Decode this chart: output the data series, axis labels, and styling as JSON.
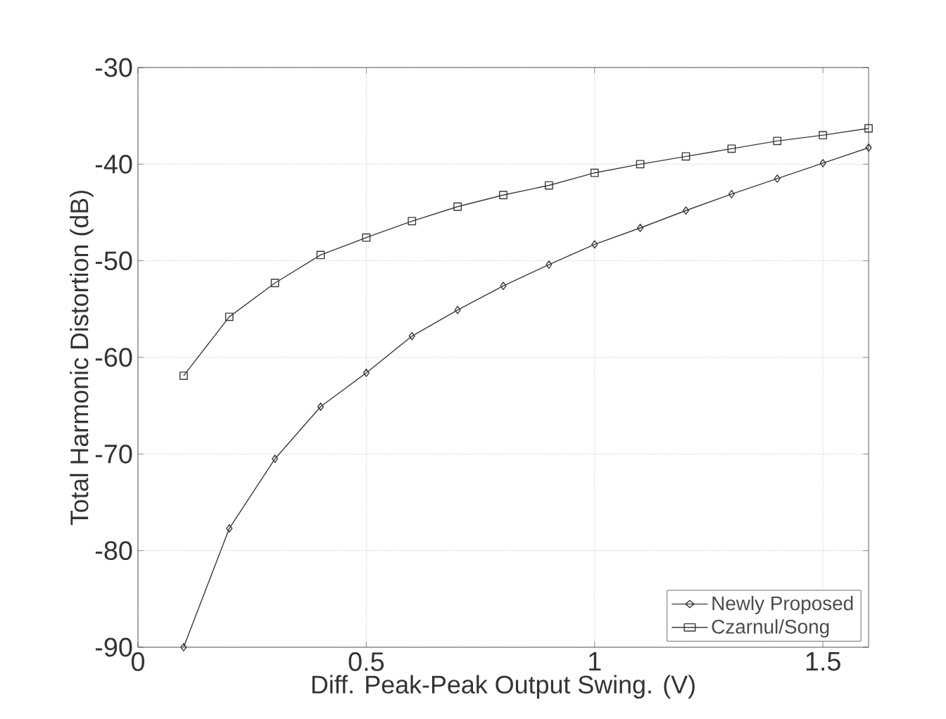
{
  "chart_data": {
    "type": "line",
    "xlabel": "Diff. Peak-Peak Output Swing. (V)",
    "ylabel": "Total Harmonic Distortion (dB)",
    "xlim": [
      0,
      1.6
    ],
    "ylim": [
      -90,
      -30
    ],
    "xticks": [
      0,
      0.5,
      1,
      1.5
    ],
    "yticks": [
      -90,
      -80,
      -70,
      -60,
      -50,
      -40,
      -30
    ],
    "grid": true,
    "legend": "bottom right",
    "line_style": "solid",
    "series": [
      {
        "name": "Newly Proposed",
        "color": "#3a3a3a",
        "marker": "diamond",
        "x": [
          0.1,
          0.2,
          0.3,
          0.4,
          0.5,
          0.6,
          0.7,
          0.8,
          0.9,
          1.0,
          1.1,
          1.2,
          1.3,
          1.4,
          1.5,
          1.6
        ],
        "values": [
          -90,
          -77.7,
          -70.5,
          -65.1,
          -61.6,
          -57.8,
          -55.1,
          -52.6,
          -50.4,
          -48.3,
          -46.6,
          -44.8,
          -43.1,
          -41.5,
          -39.9,
          -38.3
        ]
      },
      {
        "name": "Czarnul/Song",
        "color": "#3a3a3a",
        "marker": "square",
        "x": [
          0.1,
          0.2,
          0.3,
          0.4,
          0.5,
          0.6,
          0.7,
          0.8,
          0.9,
          1.0,
          1.1,
          1.2,
          1.3,
          1.4,
          1.5,
          1.6
        ],
        "values": [
          -61.9,
          -55.8,
          -52.3,
          -49.4,
          -47.6,
          -45.9,
          -44.4,
          -43.2,
          -42.2,
          -40.9,
          -40.0,
          -39.2,
          -38.4,
          -37.6,
          -37.0,
          -36.3
        ]
      }
    ]
  }
}
